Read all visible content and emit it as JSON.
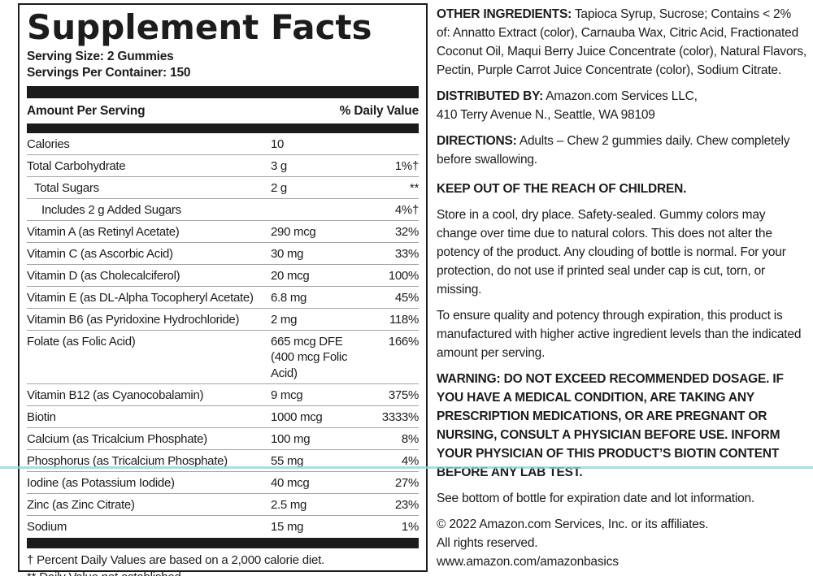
{
  "colors": {
    "accent_line": "#8ed6de",
    "bar": "#1b1b1b",
    "text": "#1c1c1c"
  },
  "panel": {
    "title": "Supplement Facts",
    "serving_size": "Serving Size: 2 Gummies",
    "servings_per_container": "Servings Per Container: 150",
    "header": {
      "amount": "Amount Per Serving",
      "daily_value": "% Daily Value"
    },
    "rows": [
      {
        "name": "Calories",
        "amount": "10",
        "dv": "",
        "indent": 0
      },
      {
        "name": "Total Carbohydrate",
        "amount": "3 g",
        "dv": "1%†",
        "indent": 0
      },
      {
        "name": "Total Sugars",
        "amount": "2 g",
        "dv": "**",
        "indent": 1
      },
      {
        "name": "Includes 2 g Added Sugars",
        "amount": "",
        "dv": "4%†",
        "indent": 2
      },
      {
        "name": "Vitamin A (as Retinyl Acetate)",
        "amount": "290 mcg",
        "dv": "32%",
        "indent": 0
      },
      {
        "name": "Vitamin C (as Ascorbic Acid)",
        "amount": "30 mg",
        "dv": "33%",
        "indent": 0
      },
      {
        "name": "Vitamin D (as Cholecalciferol)",
        "amount": "20 mcg",
        "dv": "100%",
        "indent": 0
      },
      {
        "name": "Vitamin E (as DL-Alpha Tocopheryl Acetate)",
        "amount": "6.8 mg",
        "dv": "45%",
        "indent": 0
      },
      {
        "name": "Vitamin B6 (as Pyridoxine Hydrochloride)",
        "amount": "2 mg",
        "dv": "118%",
        "indent": 0
      },
      {
        "name": "Folate (as Folic Acid)",
        "amount": "665 mcg DFE\n(400 mcg Folic Acid)",
        "dv": "166%",
        "indent": 0
      },
      {
        "name": "Vitamin B12 (as Cyanocobalamin)",
        "amount": "9 mcg",
        "dv": "375%",
        "indent": 0
      },
      {
        "name": "Biotin",
        "amount": "1000 mcg",
        "dv": "3333%",
        "indent": 0
      },
      {
        "name": "Calcium (as Tricalcium Phosphate)",
        "amount": "100 mg",
        "dv": "8%",
        "indent": 0
      },
      {
        "name": "Phosphorus (as Tricalcium Phosphate)",
        "amount": "55 mg",
        "dv": "4%",
        "indent": 0
      },
      {
        "name": "Iodine (as Potassium Iodide)",
        "amount": "40 mcg",
        "dv": "27%",
        "indent": 0
      },
      {
        "name": "Zinc (as Zinc Citrate)",
        "amount": "2.5 mg",
        "dv": "23%",
        "indent": 0
      },
      {
        "name": "Sodium",
        "amount": "15 mg",
        "dv": "1%",
        "indent": 0
      }
    ],
    "footnotes": [
      "† Percent Daily Values are based on a 2,000 calorie diet.",
      "** Daily Value not established."
    ]
  },
  "right_column": {
    "sections": [
      {
        "lead": "OTHER INGREDIENTS:",
        "text": "Tapioca Syrup, Sucrose; Contains < 2% of: Annatto Extract (color), Carnauba Wax, Citric Acid, Fractionated Coconut Oil, Maqui Berry Juice Concentrate (color), Natural Flavors, Pectin, Purple Carrot Juice Concentrate (color), Sodium Citrate.",
        "space_before": false
      },
      {
        "lead": "DISTRIBUTED BY:",
        "text": "Amazon.com Services LLC,\n410 Terry Avenue N., Seattle, WA 98109",
        "space_before": false
      },
      {
        "lead": "DIRECTIONS:",
        "text": "Adults – Chew 2 gummies daily. Chew completely before swallowing.",
        "space_before": false
      },
      {
        "lead": "KEEP OUT OF THE REACH OF CHILDREN.",
        "text": "",
        "space_before": true
      },
      {
        "lead": "",
        "text": "Store in a cool, dry place. Safety-sealed. Gummy colors may change over time due to natural colors. This does not alter the potency of the product. Any clouding of bottle is normal. For your protection, do not use if printed seal under cap is cut, torn, or missing.",
        "space_before": false
      },
      {
        "lead": "",
        "text": "To ensure quality and potency through expiration, this product is manufactured with higher active ingredient levels than the indicated amount per serving.",
        "space_before": false
      },
      {
        "lead": "WARNING:  DO NOT EXCEED RECOMMENDED DOSAGE. IF YOU HAVE A MEDICAL CONDITION, ARE TAKING ANY PRESCRIPTION MEDICATIONS, OR ARE PREGNANT OR NURSING, CONSULT A PHYSICIAN BEFORE USE. INFORM YOUR PHYSICIAN OF THIS PRODUCT’S BIOTIN CONTENT BEFORE ANY LAB TEST.",
        "text": "",
        "space_before": false
      },
      {
        "lead": "",
        "text": "See bottom of bottle for expiration date and lot information.",
        "space_before": false
      },
      {
        "lead": "",
        "text": "© 2022 Amazon.com Services, Inc. or its affiliates.\nAll rights reserved.\nwww.amazon.com/amazonbasics",
        "space_before": false
      }
    ]
  }
}
